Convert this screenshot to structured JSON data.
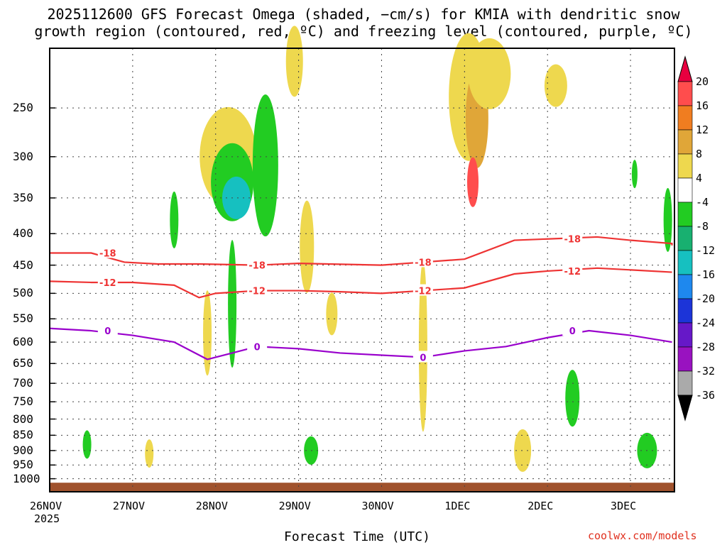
{
  "title_line1": "2025112600 GFS Forecast Omega (shaded, −cm/s) for KMIA with dendritic snow",
  "title_line2": "growth region (contoured, red, ºC) and freezing level (contoured, purple, ºC)",
  "xlabel": "Forecast Time (UTC)",
  "credit": "coolwx.com/models",
  "year": "2025",
  "colors": {
    "red_contour": "#ee3333",
    "purple_contour": "#9900cc",
    "ground": "#a0522d",
    "grid": "#444444"
  },
  "chart_data": {
    "type": "heatmap",
    "x_ticks": [
      "26NOV",
      "27NOV",
      "28NOV",
      "29NOV",
      "30NOV",
      "1DEC",
      "2DEC",
      "3DEC"
    ],
    "y_ticks": [
      250,
      300,
      350,
      400,
      450,
      500,
      550,
      600,
      650,
      700,
      750,
      800,
      850,
      900,
      950,
      1000
    ],
    "y_scale": "pressure (log)",
    "colorbar_ticks": [
      20,
      16,
      12,
      8,
      4,
      -4,
      -8,
      -12,
      -16,
      -20,
      -24,
      -28,
      -32,
      -36
    ],
    "colorbar_colors": [
      "#e8003f",
      "#ff4d4d",
      "#f07d20",
      "#e0a638",
      "#eed84e",
      "#ffffff",
      "#22cc22",
      "#18b070",
      "#16c0c0",
      "#1e88ee",
      "#1c34d8",
      "#6618c8",
      "#9912c0",
      "#aaaaaa",
      "#000000"
    ],
    "contours": [
      {
        "label": "-18",
        "color": "red",
        "points": [
          [
            0,
            430
          ],
          [
            0.5,
            430
          ],
          [
            0.9,
            445
          ],
          [
            1.3,
            448
          ],
          [
            1.8,
            448
          ],
          [
            2.5,
            450
          ],
          [
            3.0,
            447
          ],
          [
            4.0,
            450
          ],
          [
            4.5,
            445
          ],
          [
            5.0,
            440
          ],
          [
            5.6,
            410
          ],
          [
            6.0,
            408
          ],
          [
            6.6,
            405
          ],
          [
            7.0,
            410
          ],
          [
            7.5,
            415
          ],
          [
            7.5,
            418
          ]
        ]
      },
      {
        "label": "-12",
        "color": "red",
        "points": [
          [
            0,
            478
          ],
          [
            0.5,
            480
          ],
          [
            1.0,
            480
          ],
          [
            1.5,
            485
          ],
          [
            1.8,
            508
          ],
          [
            2.0,
            500
          ],
          [
            2.5,
            495
          ],
          [
            3.0,
            495
          ],
          [
            3.5,
            497
          ],
          [
            4.0,
            500
          ],
          [
            4.5,
            495
          ],
          [
            5.0,
            490
          ],
          [
            5.6,
            465
          ],
          [
            6.0,
            460
          ],
          [
            6.6,
            455
          ],
          [
            7.0,
            458
          ],
          [
            7.5,
            462
          ]
        ]
      },
      {
        "label": "0",
        "color": "purple",
        "points": [
          [
            0,
            570
          ],
          [
            0.5,
            575
          ],
          [
            1.0,
            585
          ],
          [
            1.5,
            600
          ],
          [
            1.9,
            640
          ],
          [
            2.2,
            625
          ],
          [
            2.5,
            610
          ],
          [
            3.0,
            615
          ],
          [
            3.5,
            625
          ],
          [
            4.0,
            630
          ],
          [
            4.5,
            635
          ],
          [
            5.0,
            620
          ],
          [
            5.5,
            610
          ],
          [
            6.0,
            590
          ],
          [
            6.5,
            575
          ],
          [
            7.0,
            585
          ],
          [
            7.5,
            600
          ]
        ]
      }
    ]
  }
}
